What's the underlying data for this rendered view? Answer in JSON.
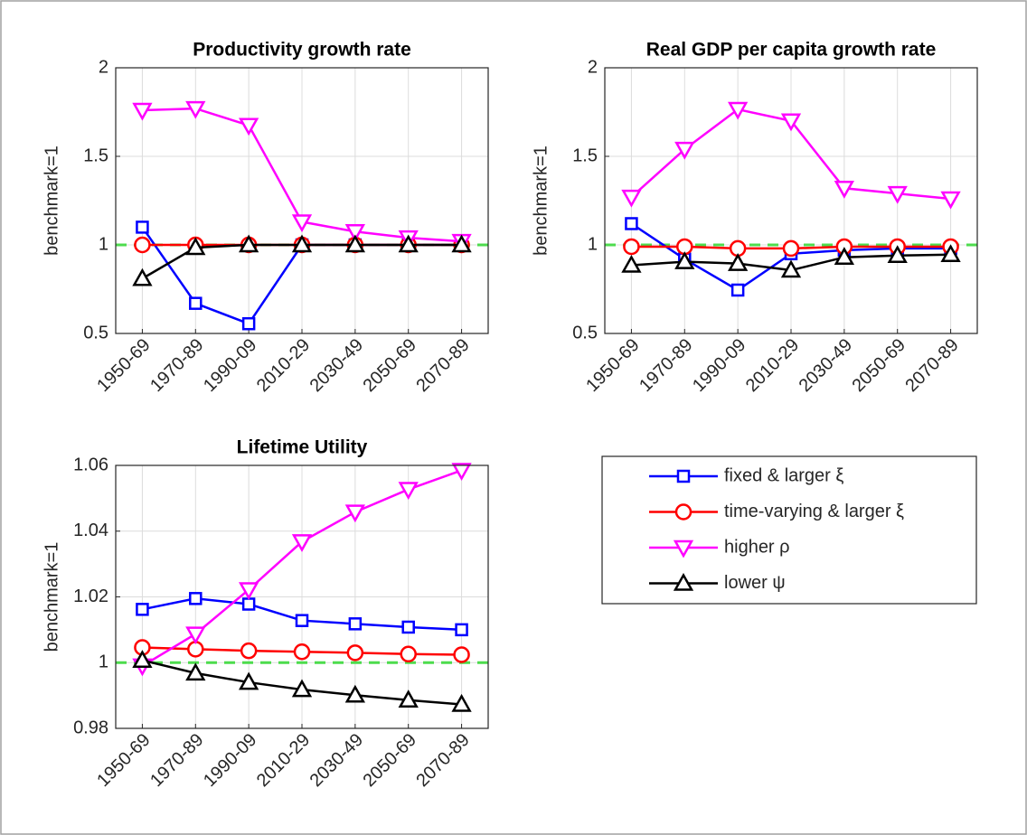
{
  "chart_data": [
    {
      "type": "line",
      "title": "Productivity growth rate",
      "y_label": "benchmark=1",
      "categories": [
        "1950-69",
        "1970-89",
        "1990-09",
        "2010-29",
        "2030-49",
        "2050-69",
        "2070-89"
      ],
      "ylim": [
        0.5,
        2
      ],
      "yticks": [
        0.5,
        1,
        1.5,
        2
      ],
      "grid": true,
      "reference_line": 1,
      "series": [
        {
          "values": [
            1.1,
            0.67,
            0.555,
            1.0,
            1.0,
            1.0,
            1.0
          ]
        },
        {
          "values": [
            1.0,
            1.0,
            1.0,
            1.0,
            1.0,
            1.0,
            1.0
          ]
        },
        {
          "values": [
            1.76,
            1.77,
            1.675,
            1.13,
            1.075,
            1.04,
            1.02
          ]
        },
        {
          "values": [
            0.81,
            0.985,
            1.0,
            1.0,
            1.0,
            1.0,
            1.0
          ]
        }
      ]
    },
    {
      "type": "line",
      "title": "Real GDP per capita growth rate",
      "y_label": "benchmark=1",
      "categories": [
        "1950-69",
        "1970-89",
        "1990-09",
        "2010-29",
        "2030-49",
        "2050-69",
        "2070-89"
      ],
      "ylim": [
        0.5,
        2
      ],
      "yticks": [
        0.5,
        1,
        1.5,
        2
      ],
      "grid": true,
      "reference_line": 1,
      "series": [
        {
          "values": [
            1.12,
            0.92,
            0.745,
            0.95,
            0.97,
            0.98,
            0.98
          ]
        },
        {
          "values": [
            0.99,
            0.99,
            0.98,
            0.98,
            0.99,
            0.99,
            0.99
          ]
        },
        {
          "values": [
            1.27,
            1.54,
            1.765,
            1.7,
            1.32,
            1.29,
            1.26
          ]
        },
        {
          "values": [
            0.885,
            0.905,
            0.895,
            0.857,
            0.93,
            0.94,
            0.945
          ]
        }
      ]
    },
    {
      "type": "line",
      "title": "Lifetime Utility",
      "y_label": "benchmark=1",
      "categories": [
        "1950-69",
        "1970-89",
        "1990-09",
        "2010-29",
        "2030-49",
        "2050-69",
        "2070-89"
      ],
      "ylim": [
        0.98,
        1.06
      ],
      "yticks": [
        0.98,
        1,
        1.02,
        1.04,
        1.06
      ],
      "grid": true,
      "reference_line": 1,
      "series": [
        {
          "values": [
            1.0162,
            1.0195,
            1.0178,
            1.0128,
            1.0118,
            1.0108,
            1.01
          ]
        },
        {
          "values": [
            1.0046,
            1.0041,
            1.0036,
            1.0033,
            1.003,
            1.0026,
            1.0024
          ]
        },
        {
          "values": [
            0.999,
            1.0087,
            1.0222,
            1.0368,
            1.0458,
            1.0527,
            1.0585
          ]
        },
        {
          "values": [
            1.0007,
            0.9968,
            0.994,
            0.9918,
            0.9901,
            0.9886,
            0.9873
          ]
        }
      ]
    }
  ],
  "legend": {
    "entries": [
      {
        "name": "fixed & larger ξ",
        "color": "#0000ff",
        "marker": "square"
      },
      {
        "name": "time-varying & larger ξ",
        "color": "#ff0000",
        "marker": "circle"
      },
      {
        "name": "higher ρ",
        "color": "#ff00ff",
        "marker": "triangle-down"
      },
      {
        "name": "lower ψ",
        "color": "#000000",
        "marker": "triangle-up"
      }
    ],
    "reference_color": "#4ddc4d"
  }
}
